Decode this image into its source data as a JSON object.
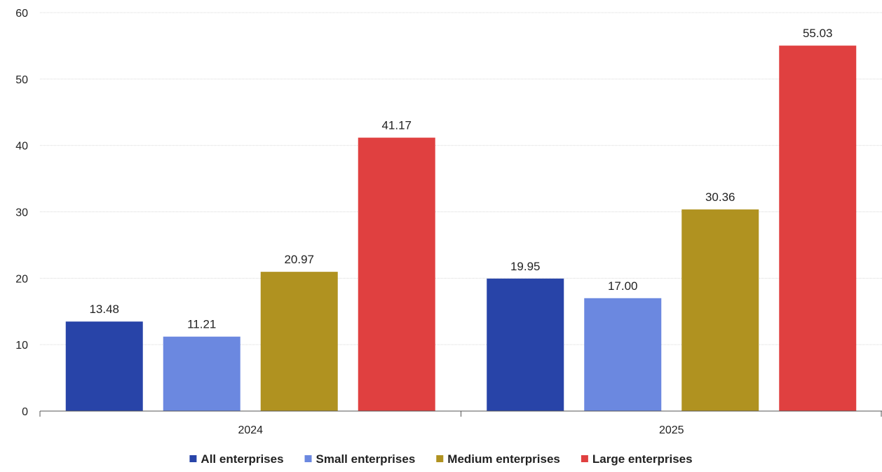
{
  "chart_data": {
    "type": "bar",
    "categories": [
      "2024",
      "2025"
    ],
    "series": [
      {
        "name": "All enterprises",
        "values": [
          13.48,
          19.95
        ],
        "color": "#2844a8"
      },
      {
        "name": "Small enterprises",
        "values": [
          11.21,
          17.0
        ],
        "color": "#6b88e0"
      },
      {
        "name": "Medium enterprises",
        "values": [
          20.97,
          30.36
        ],
        "color": "#b09220"
      },
      {
        "name": "Large enterprises",
        "values": [
          41.17,
          55.03
        ],
        "color": "#e04040"
      }
    ],
    "data_labels": [
      [
        "13.48",
        "19.95"
      ],
      [
        "11.21",
        "17.00"
      ],
      [
        "20.97",
        "30.36"
      ],
      [
        "41.17",
        "55.03"
      ]
    ],
    "title": "",
    "xlabel": "",
    "ylabel": "",
    "ylim": [
      0,
      60
    ],
    "yticks": [
      0,
      10,
      20,
      30,
      40,
      50,
      60
    ],
    "grid": true,
    "legend_position": "bottom-center"
  }
}
